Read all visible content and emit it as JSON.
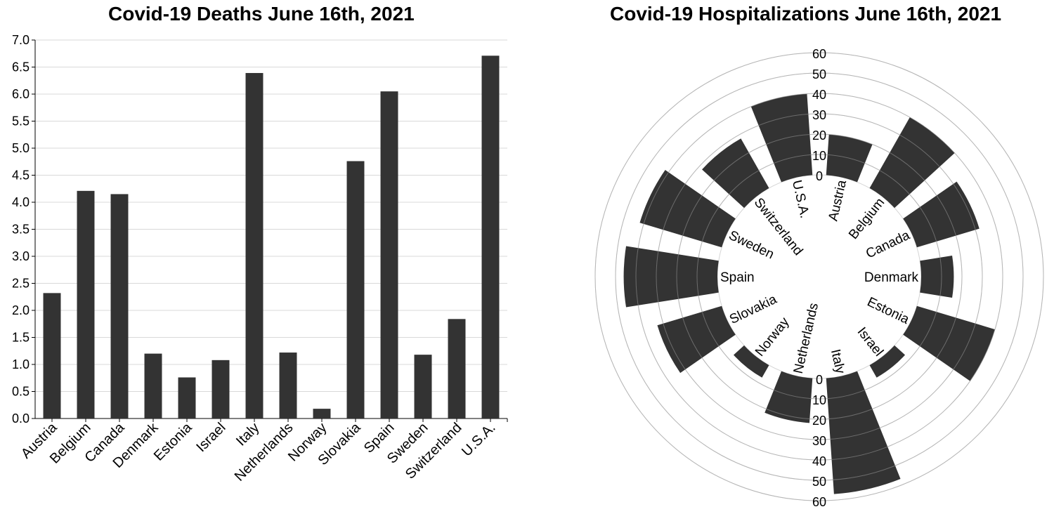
{
  "chart_data": [
    {
      "type": "bar",
      "title": "Covid-19 Deaths June 16th, 2021",
      "categories": [
        "Austria",
        "Belgium",
        "Canada",
        "Denmark",
        "Estonia",
        "Israel",
        "Italy",
        "Netherlands",
        "Norway",
        "Slovakia",
        "Spain",
        "Sweden",
        "Switzerland",
        "U.S.A."
      ],
      "values": [
        2.32,
        4.21,
        4.15,
        1.2,
        0.76,
        1.08,
        6.39,
        1.22,
        0.18,
        4.76,
        6.05,
        1.18,
        1.84,
        6.71
      ],
      "ylim": [
        0,
        7
      ],
      "yticks": [
        "0.0",
        "0.5",
        "1.0",
        "1.5",
        "2.0",
        "2.5",
        "3.0",
        "3.5",
        "4.0",
        "4.5",
        "5.0",
        "5.5",
        "6.0",
        "6.5",
        "7.0"
      ],
      "grid": true,
      "bar_color": "#333333"
    },
    {
      "type": "bar",
      "title": "Covid-19 Hospitalizations June 16th, 2021",
      "categories": [
        "Austria",
        "Belgium",
        "Canada",
        "Denmark",
        "Estonia",
        "Israel",
        "Italy",
        "Netherlands",
        "Norway",
        "Slovakia",
        "Spain",
        "Sweden",
        "Switzerland",
        "U.S.A."
      ],
      "values": [
        20,
        40,
        32,
        16,
        40,
        7,
        57,
        22,
        7,
        33,
        46,
        42,
        28,
        40
      ],
      "rlim": [
        0,
        60
      ],
      "rticks": [
        "0",
        "10",
        "20",
        "30",
        "40",
        "50",
        "60"
      ],
      "grid": true,
      "bar_color": "#333333"
    }
  ]
}
